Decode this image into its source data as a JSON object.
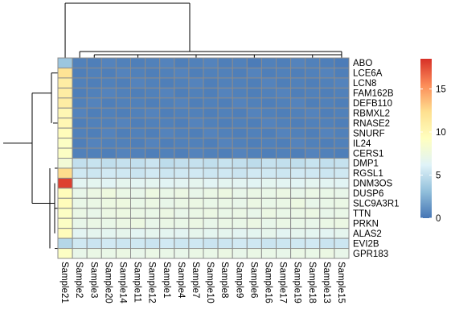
{
  "chart_data": {
    "type": "heatmap",
    "title": "",
    "rows": [
      "ABO",
      "LCE6A",
      "LCN8",
      "FAM162B",
      "DEFB110",
      "RBMXL2",
      "RNASE2",
      "SNURF",
      "IL24",
      "CERS1",
      "DMP1",
      "RGSL1",
      "DNM3OS",
      "DUSP6",
      "SLC9A3R1",
      "TTN",
      "PRKN",
      "ALAS2",
      "EVI2B",
      "GPR183"
    ],
    "columns": [
      "Sample21",
      "Sample2",
      "Sample3",
      "Sample20",
      "Sample14",
      "Sample11",
      "Sample12",
      "Sample1",
      "Sample4",
      "Sample7",
      "Sample10",
      "Sample8",
      "Sample9",
      "Sample6",
      "Sample16",
      "Sample17",
      "Sample19",
      "Sample18",
      "Sample13",
      "Sample15"
    ],
    "values": [
      [
        3.5,
        0.5,
        0.4,
        0.6,
        0.5,
        0.4,
        0.5,
        0.6,
        0.4,
        0.5,
        0.6,
        0.4,
        0.5,
        0.3,
        0.5,
        0.4,
        0.6,
        0.5,
        0.4,
        0.3
      ],
      [
        12,
        0.4,
        0.5,
        0.4,
        0.6,
        0.5,
        0.4,
        0.5,
        0.6,
        0.4,
        0.5,
        0.5,
        0.4,
        0.6,
        0.4,
        0.5,
        0.4,
        0.5,
        0.6,
        0.4
      ],
      [
        11,
        0.5,
        0.4,
        0.5,
        0.4,
        0.6,
        0.5,
        0.4,
        0.5,
        0.6,
        0.4,
        0.5,
        0.5,
        0.4,
        0.6,
        0.4,
        0.5,
        0.4,
        0.5,
        0.6
      ],
      [
        11,
        0.4,
        0.5,
        0.6,
        0.5,
        0.4,
        0.5,
        0.6,
        0.4,
        0.5,
        0.4,
        0.6,
        0.5,
        0.4,
        0.5,
        0.6,
        0.4,
        0.5,
        0.4,
        0.5
      ],
      [
        11,
        0.5,
        0.6,
        0.4,
        0.5,
        0.5,
        0.4,
        0.5,
        0.6,
        0.4,
        0.5,
        0.4,
        0.6,
        0.5,
        0.4,
        0.5,
        0.6,
        0.4,
        0.5,
        0.4
      ],
      [
        10,
        0.6,
        0.4,
        0.5,
        0.4,
        0.5,
        0.6,
        0.4,
        0.5,
        0.5,
        0.4,
        0.5,
        0.4,
        0.6,
        0.5,
        0.4,
        0.5,
        0.6,
        0.4,
        0.5
      ],
      [
        10,
        0.4,
        0.5,
        0.5,
        0.6,
        0.4,
        0.5,
        0.5,
        0.4,
        0.6,
        0.5,
        0.4,
        0.5,
        0.4,
        0.6,
        0.5,
        0.4,
        0.5,
        0.5,
        0.4
      ],
      [
        9.5,
        0.5,
        0.4,
        0.6,
        0.4,
        0.5,
        0.4,
        0.6,
        0.5,
        0.4,
        0.6,
        0.5,
        0.4,
        0.5,
        0.4,
        0.6,
        0.5,
        0.4,
        0.6,
        0.5
      ],
      [
        9,
        0.4,
        0.6,
        0.5,
        0.5,
        0.4,
        0.6,
        0.4,
        0.5,
        0.5,
        0.4,
        0.6,
        0.5,
        0.4,
        0.5,
        0.4,
        0.6,
        0.5,
        0.4,
        0.5
      ],
      [
        9,
        0.5,
        0.5,
        0.4,
        0.6,
        0.5,
        0.4,
        0.5,
        0.4,
        0.6,
        0.5,
        0.4,
        0.6,
        0.5,
        0.4,
        0.5,
        0.4,
        0.6,
        0.5,
        0.4
      ],
      [
        8,
        5.0,
        5.2,
        4.9,
        5.1,
        5.0,
        5.3,
        4.8,
        5.0,
        5.1,
        4.9,
        5.2,
        5.0,
        4.8,
        5.1,
        5.0,
        4.9,
        5.2,
        5.0,
        5.1
      ],
      [
        12.5,
        5.5,
        5.4,
        5.6,
        5.5,
        5.3,
        5.6,
        5.4,
        5.5,
        5.6,
        5.4,
        5.5,
        5.3,
        5.6,
        5.5,
        5.4,
        5.6,
        5.5,
        5.4,
        5.5
      ],
      [
        18,
        6.5,
        6.6,
        6.4,
        6.7,
        6.5,
        6.6,
        6.4,
        6.5,
        6.7,
        6.4,
        6.6,
        6.5,
        6.4,
        6.6,
        6.5,
        6.4,
        6.6,
        6.5,
        6.4
      ],
      [
        9.5,
        7.0,
        7.3,
        7.6,
        7.2,
        7.0,
        7.4,
        7.1,
        7.3,
        7.0,
        7.2,
        7.4,
        7.0,
        7.2,
        7.1,
        7.3,
        7.0,
        7.2,
        7.1,
        7.0
      ],
      [
        9.5,
        7.1,
        7.2,
        7.4,
        7.5,
        7.1,
        7.3,
        7.0,
        7.2,
        7.3,
        7.1,
        7.2,
        7.0,
        7.3,
        7.1,
        7.2,
        7.4,
        7.0,
        7.1,
        7.2
      ],
      [
        9,
        7.2,
        7.0,
        7.3,
        7.4,
        7.2,
        7.1,
        7.3,
        7.0,
        7.2,
        7.3,
        7.1,
        7.2,
        7.0,
        7.3,
        7.1,
        7.2,
        7.3,
        7.0,
        7.1
      ],
      [
        9,
        7.0,
        7.2,
        7.1,
        7.3,
        7.4,
        7.0,
        7.2,
        7.1,
        7.3,
        7.0,
        7.2,
        7.1,
        7.3,
        7.0,
        7.2,
        7.1,
        7.0,
        7.2,
        7.3
      ],
      [
        9.5,
        6.5,
        6.7,
        6.6,
        6.8,
        6.5,
        6.7,
        6.6,
        6.5,
        6.8,
        6.6,
        6.7,
        6.5,
        6.6,
        6.8,
        6.5,
        6.7,
        6.6,
        6.5,
        6.7
      ],
      [
        4.5,
        5.5,
        5.3,
        5.6,
        5.4,
        5.5,
        5.3,
        5.6,
        5.4,
        5.5,
        5.3,
        5.4,
        5.6,
        5.5,
        5.3,
        5.4,
        5.5,
        5.6,
        5.3,
        5.4
      ],
      [
        9,
        7.0,
        7.2,
        7.1,
        7.3,
        7.0,
        7.2,
        7.1,
        7.0,
        7.2,
        7.1,
        7.3,
        7.0,
        7.2,
        7.1,
        7.0,
        7.2,
        7.1,
        7.3,
        7.0
      ]
    ],
    "scale": {
      "min": 0,
      "max": 18.5,
      "ticks": [
        0,
        5,
        10,
        15
      ]
    },
    "palette": [
      "#4575B4",
      "#91BFDB",
      "#E0F3F8",
      "#FFFFBF",
      "#FEE090",
      "#FC8D59",
      "#D73027"
    ],
    "cell_border_color": "#8C8C8C",
    "legend_placement": "right",
    "row_dendrogram": true,
    "column_dendrogram": true
  }
}
